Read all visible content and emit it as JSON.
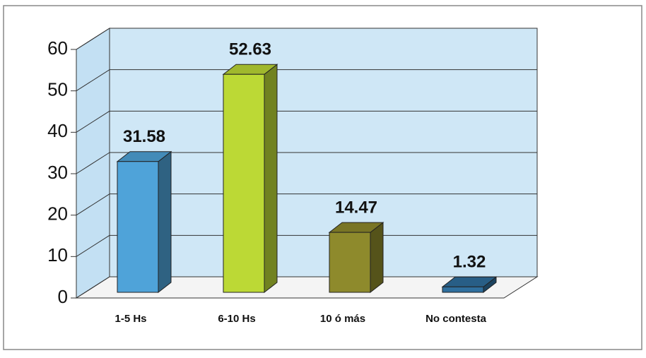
{
  "chart_data": {
    "type": "bar3d",
    "categories": [
      "1-5 Hs",
      "6-10 Hs",
      "10 ó más",
      "No contesta"
    ],
    "values": [
      31.58,
      52.63,
      14.47,
      1.32
    ],
    "colors": [
      "#4fa3d9",
      "#bcd935",
      "#8e8a2c",
      "#2f6f9e"
    ],
    "ylim": [
      0,
      60
    ],
    "yticks": [
      0,
      10,
      20,
      30,
      40,
      50,
      60
    ],
    "grid": true
  }
}
